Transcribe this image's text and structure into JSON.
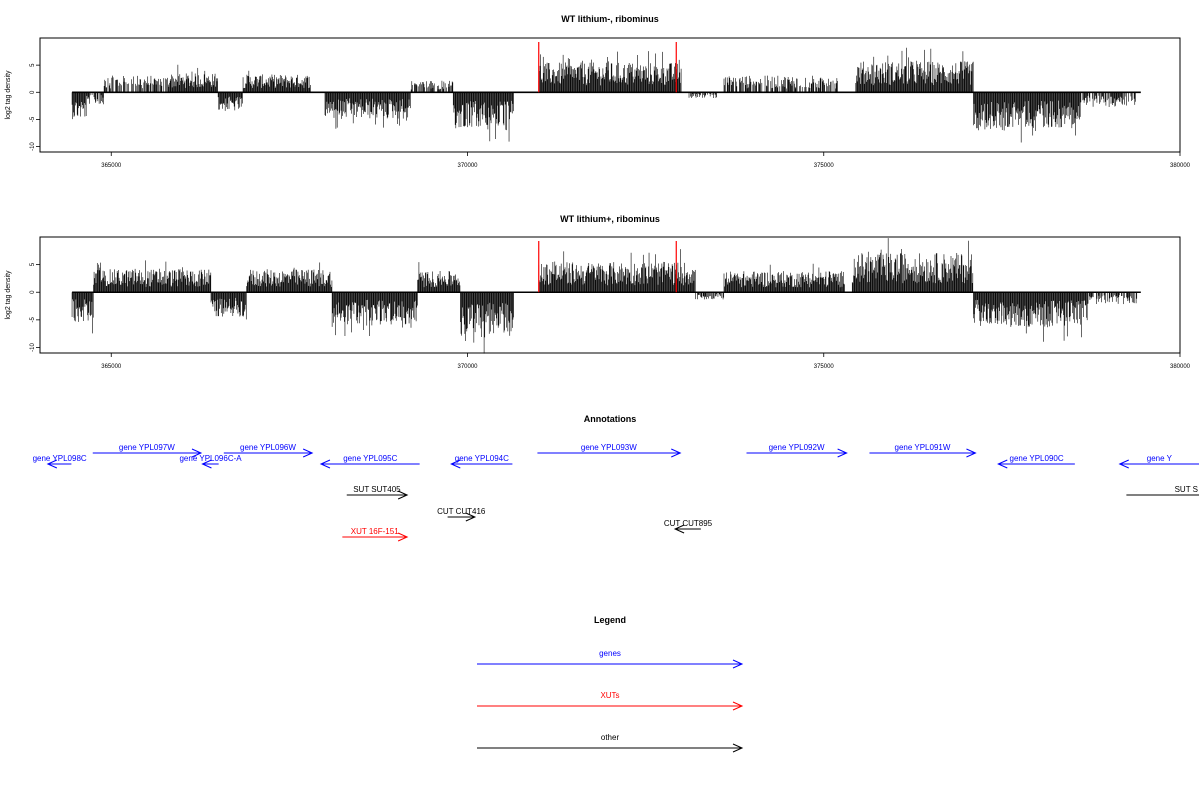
{
  "chart_data": [
    {
      "type": "bar",
      "title": "WT lithium-, ribominus",
      "ylabel": "log2 tag density",
      "xlim": [
        364000,
        380000
      ],
      "ylim": [
        -11,
        10
      ],
      "x_ticks": [
        365000,
        370000,
        375000,
        380000
      ],
      "y_ticks": [
        -10,
        -5,
        0,
        5
      ],
      "highlight_x": [
        371000,
        372930
      ],
      "highlight_color": "#ff0000",
      "segments": [
        {
          "from": 364450,
          "to": 364650,
          "amp": -4.5
        },
        {
          "from": 364650,
          "to": 364900,
          "amp": -2.0
        },
        {
          "from": 364900,
          "to": 365800,
          "amp": 2.8
        },
        {
          "from": 365800,
          "to": 366500,
          "amp": 3.2
        },
        {
          "from": 366500,
          "to": 366850,
          "amp": -3.2
        },
        {
          "from": 366850,
          "to": 367800,
          "amp": 3.0
        },
        {
          "from": 368000,
          "to": 369200,
          "amp": -4.5
        },
        {
          "from": 369200,
          "to": 369800,
          "amp": 2.0
        },
        {
          "from": 369800,
          "to": 370650,
          "amp": -6.0
        },
        {
          "from": 371000,
          "to": 373000,
          "amp": 5.0
        },
        {
          "from": 373100,
          "to": 373500,
          "amp": -1.0
        },
        {
          "from": 373600,
          "to": 375200,
          "amp": 2.8
        },
        {
          "from": 375450,
          "to": 377100,
          "amp": 5.2
        },
        {
          "from": 377100,
          "to": 377600,
          "amp": -6.5
        },
        {
          "from": 377600,
          "to": 378600,
          "amp": -6.0
        },
        {
          "from": 378600,
          "to": 379400,
          "amp": -2.5
        }
      ]
    },
    {
      "type": "bar",
      "title": "WT lithium+, ribominus",
      "ylabel": "log2 tag density",
      "xlim": [
        364000,
        380000
      ],
      "ylim": [
        -11,
        10
      ],
      "x_ticks": [
        365000,
        370000,
        375000,
        380000
      ],
      "y_ticks": [
        -10,
        -5,
        0,
        5
      ],
      "highlight_x": [
        371000,
        372930
      ],
      "highlight_color": "#ff0000",
      "segments": [
        {
          "from": 364450,
          "to": 364750,
          "amp": -5.0
        },
        {
          "from": 364750,
          "to": 366400,
          "amp": 3.8
        },
        {
          "from": 366400,
          "to": 366900,
          "amp": -4.0
        },
        {
          "from": 366900,
          "to": 368100,
          "amp": 3.8
        },
        {
          "from": 368100,
          "to": 369300,
          "amp": -5.5
        },
        {
          "from": 369300,
          "to": 369900,
          "amp": 3.5
        },
        {
          "from": 369900,
          "to": 370650,
          "amp": -7.5
        },
        {
          "from": 371000,
          "to": 373200,
          "amp": 5.0
        },
        {
          "from": 373200,
          "to": 373600,
          "amp": -1.2
        },
        {
          "from": 373600,
          "to": 375300,
          "amp": 3.5
        },
        {
          "from": 375400,
          "to": 377100,
          "amp": 6.5
        },
        {
          "from": 377100,
          "to": 377500,
          "amp": -5.5
        },
        {
          "from": 377500,
          "to": 378700,
          "amp": -5.8
        },
        {
          "from": 378700,
          "to": 379400,
          "amp": -2.0
        }
      ]
    }
  ],
  "annotations": {
    "title": "Annotations",
    "features": [
      {
        "label": "gene YPL098C",
        "color": "#0000ff",
        "dir": "left",
        "start": 364350,
        "end": 364670,
        "row": 1
      },
      {
        "label": "gene YPL097W",
        "color": "#0000ff",
        "dir": "right",
        "start": 364960,
        "end": 366430,
        "row": 0
      },
      {
        "label": "gene YPL096C-A",
        "color": "#0000ff",
        "dir": "left",
        "start": 366450,
        "end": 366670,
        "row": 1
      },
      {
        "label": "gene YPL096W",
        "color": "#0000ff",
        "dir": "right",
        "start": 366740,
        "end": 367940,
        "row": 0
      },
      {
        "label": "gene YPL095C",
        "color": "#0000ff",
        "dir": "left",
        "start": 368060,
        "end": 369400,
        "row": 1
      },
      {
        "label": "gene YPL094C",
        "color": "#0000ff",
        "dir": "left",
        "start": 369830,
        "end": 370660,
        "row": 1
      },
      {
        "label": "gene YPL093W",
        "color": "#0000ff",
        "dir": "right",
        "start": 371000,
        "end": 372940,
        "row": 0
      },
      {
        "label": "gene YPL092W",
        "color": "#0000ff",
        "dir": "right",
        "start": 373840,
        "end": 375200,
        "row": 0
      },
      {
        "label": "gene YPL091W",
        "color": "#0000ff",
        "dir": "right",
        "start": 375510,
        "end": 376950,
        "row": 0
      },
      {
        "label": "gene YPL090C",
        "color": "#0000ff",
        "dir": "left",
        "start": 377260,
        "end": 378300,
        "row": 1
      },
      {
        "label": "gene Y",
        "color": "#0000ff",
        "dir": "left",
        "start": 378910,
        "end": 380000,
        "row": 1
      },
      {
        "label": "SUT SUT405",
        "color": "#000000",
        "dir": "right",
        "start": 368410,
        "end": 369230,
        "row": 2
      },
      {
        "label": "SUT S",
        "color": "#000000",
        "dir": "none",
        "start": 379000,
        "end": 380000,
        "row": 2
      },
      {
        "label": "CUT CUT416",
        "color": "#000000",
        "dir": "right",
        "start": 369780,
        "end": 370150,
        "row": 3
      },
      {
        "label": "CUT CUT895",
        "color": "#000000",
        "dir": "left",
        "start": 372870,
        "end": 373220,
        "row": 4
      },
      {
        "label": "XUT 16F-151",
        "color": "#ff0000",
        "dir": "right",
        "start": 368350,
        "end": 369230,
        "row": 5
      }
    ]
  },
  "legend": {
    "title": "Legend",
    "items": [
      {
        "label": "genes",
        "color": "#0000ff"
      },
      {
        "label": "XUTs",
        "color": "#ff0000"
      },
      {
        "label": "other",
        "color": "#000000"
      }
    ]
  }
}
